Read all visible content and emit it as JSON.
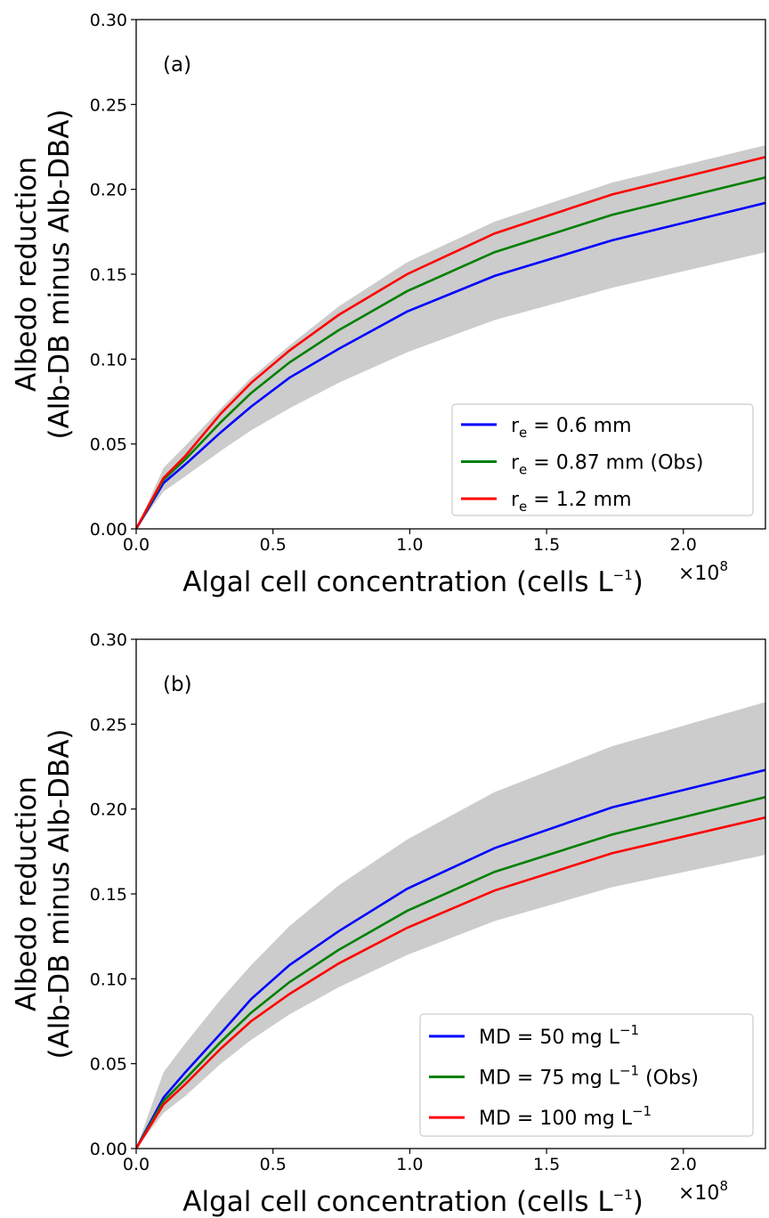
{
  "chart_data": [
    {
      "type": "line",
      "panel_label": "(a)",
      "xlabel": "Algal cell concentration (cells L",
      "xlabel_sup": "−1",
      "xlabel_tail": ")",
      "x_multiplier": "×10",
      "x_multiplier_exp": "8",
      "ylabel_line1": "Albedo reduction",
      "ylabel_line2": "(Alb-DB minus Alb-DBA)",
      "xlim": [
        0,
        2.3
      ],
      "ylim": [
        0,
        0.3
      ],
      "xticks": [
        "0.0",
        "0.5",
        "1.0",
        "1.5",
        "2.0"
      ],
      "yticks": [
        "0.00",
        "0.05",
        "0.10",
        "0.15",
        "0.20",
        "0.25",
        "0.30"
      ],
      "grid": false,
      "legend_position": "lower-right",
      "band": {
        "color": "#cccccc",
        "x": [
          0,
          0.1,
          0.18,
          0.31,
          0.42,
          0.56,
          0.74,
          0.99,
          1.31,
          1.74,
          2.3
        ],
        "upper": [
          0,
          0.036,
          0.049,
          0.071,
          0.089,
          0.108,
          0.131,
          0.157,
          0.181,
          0.204,
          0.226
        ],
        "lower": [
          0,
          0.022,
          0.031,
          0.046,
          0.058,
          0.071,
          0.086,
          0.104,
          0.123,
          0.142,
          0.163
        ]
      },
      "series": [
        {
          "label_main": "r",
          "label_sub": "e",
          "label_tail": " = 0.6 mm",
          "color": "#0000ff",
          "x": [
            0,
            0.1,
            0.18,
            0.31,
            0.42,
            0.56,
            0.74,
            0.99,
            1.31,
            1.74,
            2.3
          ],
          "y": [
            0,
            0.027,
            0.038,
            0.057,
            0.072,
            0.089,
            0.106,
            0.128,
            0.149,
            0.17,
            0.192
          ]
        },
        {
          "label_main": "r",
          "label_sub": "e",
          "label_tail": " = 0.87 mm (Obs)",
          "color": "#008000",
          "x": [
            0,
            0.1,
            0.18,
            0.31,
            0.42,
            0.56,
            0.74,
            0.99,
            1.31,
            1.74,
            2.3
          ],
          "y": [
            0,
            0.029,
            0.041,
            0.063,
            0.08,
            0.098,
            0.117,
            0.14,
            0.163,
            0.185,
            0.207
          ]
        },
        {
          "label_main": "r",
          "label_sub": "e",
          "label_tail": " = 1.2 mm",
          "color": "#ff0000",
          "x": [
            0,
            0.1,
            0.18,
            0.31,
            0.42,
            0.56,
            0.74,
            0.99,
            1.31,
            1.74,
            2.3
          ],
          "y": [
            0,
            0.03,
            0.043,
            0.068,
            0.086,
            0.105,
            0.126,
            0.15,
            0.174,
            0.197,
            0.219
          ]
        }
      ]
    },
    {
      "type": "line",
      "panel_label": "(b)",
      "xlabel": "Algal cell concentration (cells L",
      "xlabel_sup": "−1",
      "xlabel_tail": ")",
      "x_multiplier": "×10",
      "x_multiplier_exp": "8",
      "ylabel_line1": "Albedo reduction",
      "ylabel_line2": "(Alb-DB minus Alb-DBA)",
      "xlim": [
        0,
        2.3
      ],
      "ylim": [
        0,
        0.3
      ],
      "xticks": [
        "0.0",
        "0.5",
        "1.0",
        "1.5",
        "2.0"
      ],
      "yticks": [
        "0.00",
        "0.05",
        "0.10",
        "0.15",
        "0.20",
        "0.25",
        "0.30"
      ],
      "grid": false,
      "legend_position": "lower-right",
      "band": {
        "color": "#cccccc",
        "x": [
          0,
          0.1,
          0.18,
          0.31,
          0.42,
          0.56,
          0.74,
          0.99,
          1.31,
          1.74,
          2.3
        ],
        "upper": [
          0,
          0.045,
          0.062,
          0.088,
          0.108,
          0.131,
          0.155,
          0.182,
          0.21,
          0.237,
          0.263
        ],
        "lower": [
          0,
          0.021,
          0.031,
          0.05,
          0.064,
          0.079,
          0.095,
          0.114,
          0.134,
          0.154,
          0.173
        ]
      },
      "series": [
        {
          "label_main": "MD = 50 mg L",
          "label_sup": "−1",
          "label_tail": "",
          "color": "#0000ff",
          "x": [
            0,
            0.1,
            0.18,
            0.31,
            0.42,
            0.56,
            0.74,
            0.99,
            1.31,
            1.74,
            2.3
          ],
          "y": [
            0,
            0.03,
            0.045,
            0.068,
            0.088,
            0.108,
            0.128,
            0.153,
            0.177,
            0.201,
            0.223
          ]
        },
        {
          "label_main": "MD = 75 mg L",
          "label_sup": "−1",
          "label_tail": " (Obs)",
          "color": "#008000",
          "x": [
            0,
            0.1,
            0.18,
            0.31,
            0.42,
            0.56,
            0.74,
            0.99,
            1.31,
            1.74,
            2.3
          ],
          "y": [
            0,
            0.028,
            0.041,
            0.063,
            0.08,
            0.098,
            0.117,
            0.14,
            0.163,
            0.185,
            0.207
          ]
        },
        {
          "label_main": "MD = 100 mg L",
          "label_sup": "−1",
          "label_tail": "",
          "color": "#ff0000",
          "x": [
            0,
            0.1,
            0.18,
            0.31,
            0.42,
            0.56,
            0.74,
            0.99,
            1.31,
            1.74,
            2.3
          ],
          "y": [
            0,
            0.026,
            0.038,
            0.059,
            0.075,
            0.091,
            0.109,
            0.13,
            0.152,
            0.174,
            0.195
          ]
        }
      ]
    }
  ]
}
